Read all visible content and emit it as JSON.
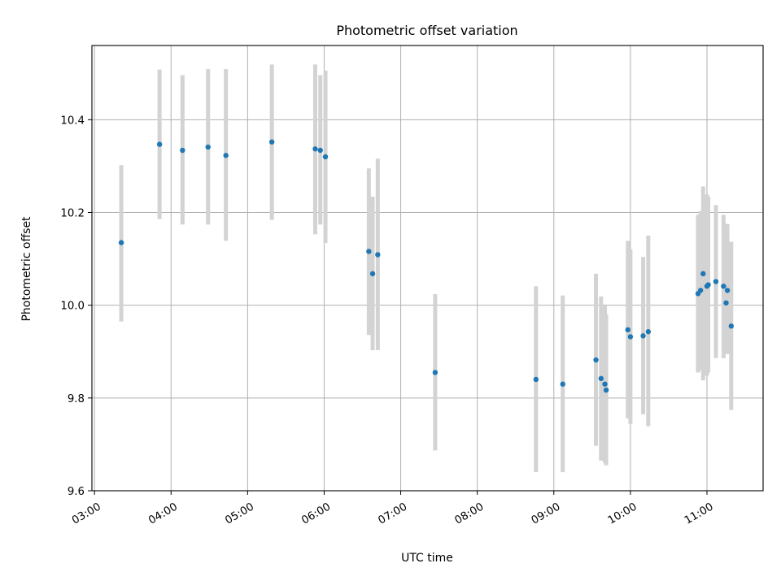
{
  "chart_data": {
    "type": "scatter",
    "title": "Photometric offset variation",
    "xlabel": "UTC time",
    "ylabel": "Photometric offset",
    "x_ticks": [
      "03:00",
      "04:00",
      "05:00",
      "06:00",
      "07:00",
      "08:00",
      "09:00",
      "10:00",
      "11:00"
    ],
    "y_ticks": [
      "9.6",
      "9.8",
      "10.0",
      "10.2",
      "10.4"
    ],
    "ylim": [
      9.6,
      10.56
    ],
    "xlim": [
      "02:58",
      "11:44"
    ],
    "grid": true,
    "marker_color": "#1f77b4",
    "errorbar_color": "#d3d3d3",
    "series": [
      {
        "points": [
          {
            "x": "03:21",
            "y": 10.135,
            "lo": 9.965,
            "hi": 10.302
          },
          {
            "x": "03:51",
            "y": 10.347,
            "lo": 10.186,
            "hi": 10.508
          },
          {
            "x": "04:09",
            "y": 10.334,
            "lo": 10.174,
            "hi": 10.496
          },
          {
            "x": "04:29",
            "y": 10.341,
            "lo": 10.174,
            "hi": 10.509
          },
          {
            "x": "04:43",
            "y": 10.323,
            "lo": 10.139,
            "hi": 10.509
          },
          {
            "x": "05:19",
            "y": 10.352,
            "lo": 10.184,
            "hi": 10.519
          },
          {
            "x": "05:53",
            "y": 10.337,
            "lo": 10.153,
            "hi": 10.519
          },
          {
            "x": "05:57",
            "y": 10.334,
            "lo": 10.174,
            "hi": 10.496
          },
          {
            "x": "06:01",
            "y": 10.32,
            "lo": 10.134,
            "hi": 10.506
          },
          {
            "x": "06:35",
            "y": 10.116,
            "lo": 9.936,
            "hi": 10.295
          },
          {
            "x": "06:38",
            "y": 10.068,
            "lo": 9.903,
            "hi": 10.234
          },
          {
            "x": "06:42",
            "y": 10.109,
            "lo": 9.903,
            "hi": 10.316
          },
          {
            "x": "07:27",
            "y": 9.855,
            "lo": 9.687,
            "hi": 10.024
          },
          {
            "x": "08:46",
            "y": 9.84,
            "lo": 9.64,
            "hi": 10.041
          },
          {
            "x": "09:07",
            "y": 9.83,
            "lo": 9.64,
            "hi": 10.021
          },
          {
            "x": "09:33",
            "y": 9.882,
            "lo": 9.697,
            "hi": 10.068
          },
          {
            "x": "09:37",
            "y": 9.842,
            "lo": 9.665,
            "hi": 10.019
          },
          {
            "x": "09:40",
            "y": 9.83,
            "lo": 9.66,
            "hi": 9.999
          },
          {
            "x": "09:41",
            "y": 9.817,
            "lo": 9.655,
            "hi": 9.98
          },
          {
            "x": "09:58",
            "y": 9.947,
            "lo": 9.756,
            "hi": 10.139
          },
          {
            "x": "10:00",
            "y": 9.932,
            "lo": 9.744,
            "hi": 10.121
          },
          {
            "x": "10:10",
            "y": 9.934,
            "lo": 9.765,
            "hi": 10.104
          },
          {
            "x": "10:14",
            "y": 9.943,
            "lo": 9.739,
            "hi": 10.15
          },
          {
            "x": "10:53",
            "y": 10.025,
            "lo": 9.855,
            "hi": 10.195
          },
          {
            "x": "10:55",
            "y": 10.032,
            "lo": 9.86,
            "hi": 10.203
          },
          {
            "x": "10:57",
            "y": 10.068,
            "lo": 9.838,
            "hi": 10.256
          },
          {
            "x": "11:00",
            "y": 10.041,
            "lo": 9.848,
            "hi": 10.239
          },
          {
            "x": "11:01",
            "y": 10.044,
            "lo": 9.855,
            "hi": 10.234
          },
          {
            "x": "11:07",
            "y": 10.051,
            "lo": 9.886,
            "hi": 10.216
          },
          {
            "x": "11:13",
            "y": 10.041,
            "lo": 9.886,
            "hi": 10.195
          },
          {
            "x": "11:15",
            "y": 10.005,
            "lo": 9.895,
            "hi": 10.175
          },
          {
            "x": "11:16",
            "y": 10.032,
            "lo": 9.895,
            "hi": 10.175
          },
          {
            "x": "11:19",
            "y": 9.955,
            "lo": 9.774,
            "hi": 10.137
          }
        ]
      }
    ]
  }
}
